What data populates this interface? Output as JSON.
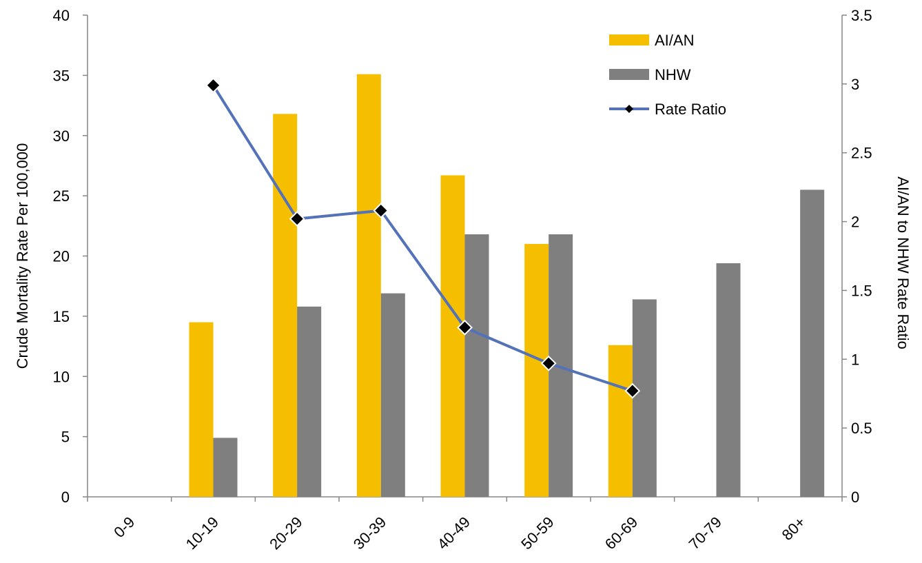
{
  "chart_data": {
    "type": "bar",
    "categories": [
      "0-9",
      "10-19",
      "20-29",
      "30-39",
      "40-49",
      "50-59",
      "60-69",
      "70-79",
      "80+"
    ],
    "series": [
      {
        "name": "AI/AN",
        "kind": "bar",
        "axis": "left",
        "color": "#F5BF00",
        "values": [
          null,
          14.5,
          31.8,
          35.1,
          26.7,
          21.0,
          12.6,
          null,
          null
        ]
      },
      {
        "name": "NHW",
        "kind": "bar",
        "axis": "left",
        "color": "#7F7F7F",
        "values": [
          null,
          4.9,
          15.8,
          16.9,
          21.8,
          21.8,
          16.4,
          19.4,
          25.5
        ]
      },
      {
        "name": "Rate Ratio",
        "kind": "line",
        "axis": "right",
        "color": "#5472B8",
        "marker": "diamond",
        "marker_color": "#000000",
        "values": [
          null,
          2.99,
          2.02,
          2.08,
          1.23,
          0.97,
          0.77,
          null,
          null
        ]
      }
    ],
    "ylabel": "Crude Mortality Rate Per 100,000",
    "y2label": "AI/AN to NHW Rate Ratio",
    "ylim": [
      0,
      40
    ],
    "yticks": [
      "0",
      "5",
      "10",
      "15",
      "20",
      "25",
      "30",
      "35",
      "40"
    ],
    "y2lim": [
      0,
      3.5
    ],
    "y2ticks": [
      "0",
      "0.5",
      "1",
      "1.5",
      "2",
      "2.5",
      "3",
      "3.5"
    ],
    "grid": false,
    "legend": "top-right"
  }
}
